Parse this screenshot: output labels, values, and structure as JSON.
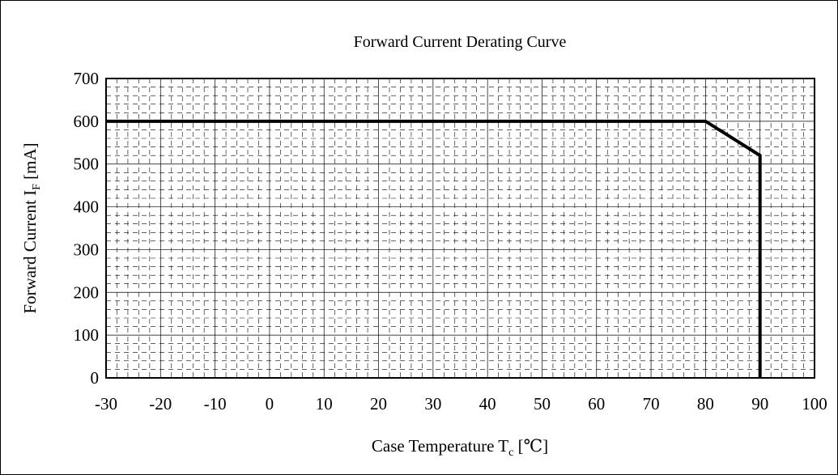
{
  "chart_data": {
    "type": "line",
    "title": "Forward Current Derating Curve",
    "xlabel": "Case Temperature T",
    "xlabel_sub": "c",
    "xlabel_unit": "[℃]",
    "ylabel": "Forward Current I",
    "ylabel_sub": "F",
    "ylabel_unit": "[mA]",
    "xlim": [
      -30,
      100
    ],
    "ylim": [
      0,
      700
    ],
    "xticks": [
      -30,
      -20,
      -10,
      0,
      10,
      20,
      30,
      40,
      50,
      60,
      70,
      80,
      90,
      100
    ],
    "yticks": [
      0,
      100,
      200,
      300,
      400,
      500,
      600,
      700
    ],
    "grid": true,
    "series": [
      {
        "x": [
          -30,
          80,
          90,
          90
        ],
        "y": [
          600,
          600,
          520,
          0
        ]
      }
    ]
  },
  "colors": {
    "line": "#000000",
    "major_grid": "#000000",
    "minor_grid": "#000000",
    "background": "#ffffff"
  }
}
